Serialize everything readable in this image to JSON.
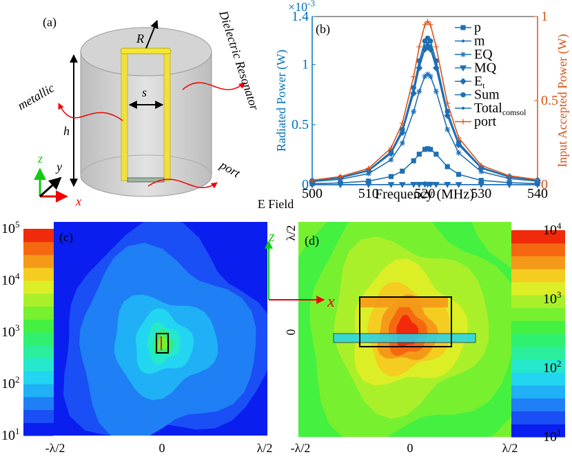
{
  "panel_a": {
    "label": "(a)",
    "R": "R",
    "s": "s",
    "h": "h",
    "metallic": "metallic",
    "resonator": "Dielectric Resonator",
    "port": "port",
    "axis_x": "x",
    "axis_y": "y",
    "axis_z": "z"
  },
  "chart_data": {
    "type": "line",
    "label": "(b)",
    "x_label": "Frequency (MHz)",
    "y_label": "Radiated Power (W)",
    "y2_label": "Input Accepted Power (W)",
    "y_multiplier": "×10",
    "y_multiplier_exp": "-3",
    "x": [
      500,
      505,
      510,
      514,
      516,
      518,
      519,
      520,
      520.5,
      521,
      522,
      524,
      526,
      530,
      535,
      540
    ],
    "xlim": [
      500,
      540
    ],
    "xticks": [
      500,
      510,
      520,
      530,
      540
    ],
    "ylim": [
      0,
      0.0014
    ],
    "yticks": [
      0,
      {
        "value": 0.0005,
        "label": "0.5"
      },
      {
        "value": 0.001,
        "label": "1"
      },
      {
        "value": 0.0014,
        "label": "1.4"
      }
    ],
    "y2lim": [
      0,
      1
    ],
    "y2ticks": [
      0,
      0.5,
      1
    ],
    "left_color": "#0072bd",
    "right_color": "#d95319",
    "series": [
      {
        "name": "p",
        "color": "#1f6fb5",
        "marker": "square",
        "values": [
          8e-06,
          1.5e-05,
          3e-05,
          6.8e-05,
          0.000113,
          0.000199,
          0.000254,
          0.000294,
          0.0003,
          0.000294,
          0.000254,
          0.00015,
          8.6e-05,
          3.6e-05,
          1.7e-05,
          9e-06
        ]
      },
      {
        "name": "m",
        "color": "#1f6fb5",
        "marker": "dot",
        "values": [
          0,
          0,
          1e-06,
          1e-06,
          2e-06,
          3e-06,
          4e-06,
          5e-06,
          5e-06,
          5e-06,
          4e-06,
          3e-06,
          1e-06,
          1e-06,
          0,
          0
        ]
      },
      {
        "name": "EQ",
        "color": "#1f6fb5",
        "marker": "star",
        "values": [
          2.6e-05,
          4.5e-05,
          9.2e-05,
          0.000207,
          0.000347,
          0.000609,
          0.000777,
          0.000902,
          0.00092,
          0.000902,
          0.000777,
          0.00046,
          0.000265,
          0.000109,
          5.1e-05,
          2.9e-05
        ]
      },
      {
        "name": "MQ",
        "color": "#1f6fb5",
        "marker": "triangle-down",
        "values": [
          0,
          0,
          1e-06,
          1e-06,
          1e-06,
          2e-06,
          2e-06,
          3e-06,
          3e-06,
          3e-06,
          2e-06,
          2e-06,
          1e-06,
          1e-06,
          0,
          0
        ]
      },
      {
        "name": "E",
        "subscript": "t",
        "color": "#1f6fb5",
        "marker": "diamond",
        "values": [
          3.2e-05,
          5.6e-05,
          0.000115,
          0.000259,
          0.000434,
          0.000761,
          0.000972,
          0.001127,
          0.00115,
          0.001127,
          0.000972,
          0.000575,
          0.000331,
          0.000137,
          6.3e-05,
          3.6e-05
        ]
      },
      {
        "name": "Sum",
        "color": "#1f6fb5",
        "marker": "circle",
        "values": [
          3.4e-05,
          6e-05,
          0.000122,
          0.000275,
          0.00046,
          0.000808,
          0.001031,
          0.001196,
          0.00122,
          0.001196,
          0.001031,
          0.00061,
          0.000351,
          0.000145,
          6.7e-05,
          3.8e-05
        ]
      },
      {
        "name": "Total",
        "subscript": "comsol",
        "color": "#1f6fb5",
        "marker": "dot",
        "values": [
          3.3e-05,
          5.8e-05,
          0.000118,
          0.000266,
          0.000445,
          0.000781,
          0.000997,
          0.001156,
          0.00118,
          0.001156,
          0.000997,
          0.00059,
          0.00034,
          0.00014,
          6.5e-05,
          3.7e-05
        ]
      },
      {
        "name": "port",
        "color": "#d95319",
        "marker": "plus",
        "axis": "y2",
        "values": [
          0.027,
          0.048,
          0.097,
          0.218,
          0.366,
          0.642,
          0.82,
          0.951,
          0.97,
          0.951,
          0.82,
          0.485,
          0.279,
          0.115,
          0.053,
          0.03
        ]
      }
    ]
  },
  "figure_title": "E Field",
  "colormap": [
    "#0a1ef0",
    "#1a4ff5",
    "#1f7ff5",
    "#1fb0f5",
    "#22d5f0",
    "#25e8cc",
    "#2bee9c",
    "#30f070",
    "#44f040",
    "#77f030",
    "#aaf02a",
    "#dcee25",
    "#f5cc20",
    "#f59a18",
    "#f56810",
    "#f02a0a"
  ],
  "panel_c": {
    "label": "(c)",
    "colorbar_ticks": [
      {
        "base": "10",
        "exp": "5"
      },
      {
        "base": "10",
        "exp": "4"
      },
      {
        "base": "10",
        "exp": "3"
      },
      {
        "base": "10",
        "exp": "2"
      },
      {
        "base": "10",
        "exp": "1"
      }
    ],
    "x_ticks": [
      "-λ/2",
      "0",
      "λ/2"
    ]
  },
  "panel_d": {
    "label": "(d)",
    "axis_z": "z",
    "axis_x": "x",
    "colorbar_ticks": [
      {
        "base": "10",
        "exp": "4"
      },
      {
        "base": "10",
        "exp": "3"
      },
      {
        "base": "10",
        "exp": "2"
      },
      {
        "base": "10",
        "exp": "1"
      }
    ],
    "x_ticks": [
      "-λ/2",
      "0",
      "λ/2"
    ],
    "y_ticks": [
      "λ/2",
      "0"
    ]
  }
}
